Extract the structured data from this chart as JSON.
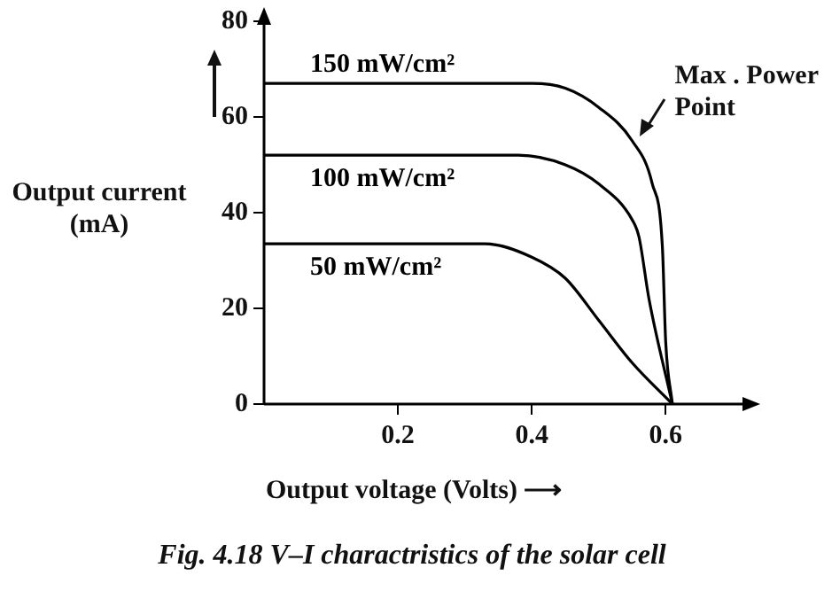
{
  "chart_data": {
    "type": "line",
    "title": "Fig. 4.18 V–I charactristics of the solar cell",
    "xlabel": "Output voltage (Volts) ⟶",
    "ylabel": "Output current (mA)",
    "xlim": [
      0,
      0.72
    ],
    "xticks": [
      0.2,
      0.4,
      0.6
    ],
    "ylim": [
      0,
      80
    ],
    "yticks": [
      0,
      20,
      40,
      60,
      80
    ],
    "grid": false,
    "legend": false,
    "marker": "none",
    "line_style": "solid",
    "series": [
      {
        "name": "150 mW/cm²",
        "color": "#000000",
        "x": [
          0,
          0.4,
          0.45,
          0.5,
          0.55,
          0.58,
          0.595,
          0.6,
          0.61
        ],
        "values": [
          67,
          67,
          66,
          62,
          55,
          46,
          33,
          13,
          0
        ]
      },
      {
        "name": "100 mW/cm²",
        "color": "#000000",
        "x": [
          0,
          0.38,
          0.45,
          0.5,
          0.55,
          0.56,
          0.575,
          0.61
        ],
        "values": [
          52,
          52,
          50,
          46,
          38.5,
          35,
          22,
          0
        ]
      },
      {
        "name": "50 mW/cm²",
        "color": "#000000",
        "x": [
          0,
          0.33,
          0.4,
          0.45,
          0.5,
          0.55,
          0.61
        ],
        "values": [
          33.5,
          33.5,
          30.7,
          26.3,
          17.5,
          8.6,
          0
        ]
      }
    ],
    "annotations": [
      {
        "text": "Max . Power Point",
        "x": 0.55,
        "y": 55
      }
    ]
  }
}
